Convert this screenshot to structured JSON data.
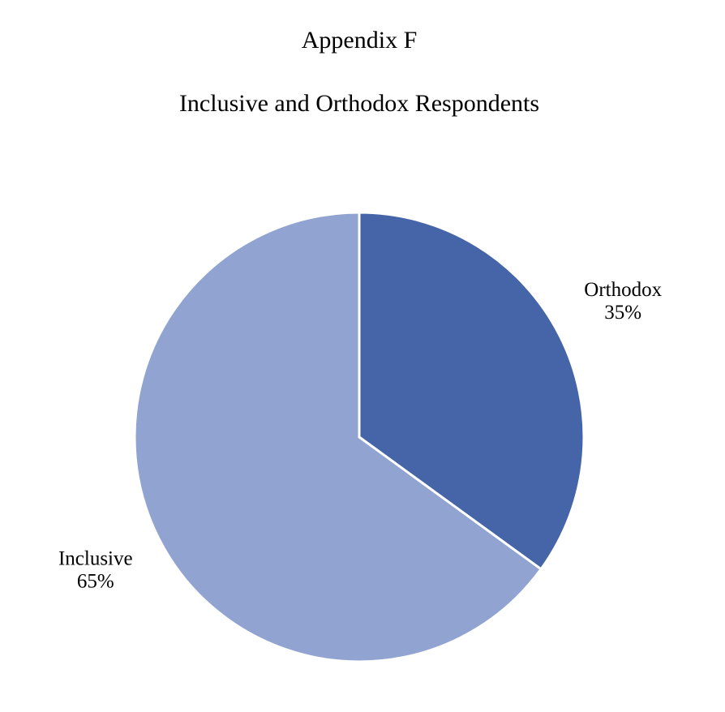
{
  "chart_data": {
    "type": "pie",
    "title": "Appendix F",
    "subtitle": "Inclusive and Orthodox Respondents",
    "categories": [
      "Orthodox",
      "Inclusive"
    ],
    "values": [
      35,
      65
    ],
    "value_labels": [
      "35%",
      "65%"
    ],
    "colors": [
      "#4565a8",
      "#91a3d0"
    ]
  }
}
